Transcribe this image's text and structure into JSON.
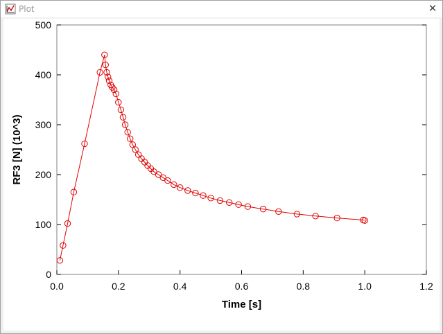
{
  "window": {
    "title": "Plot",
    "close_glyph": "✕",
    "icon": "plot-icon"
  },
  "colors": {
    "series": "#e00000",
    "axis": "#000000",
    "frame": "#808080"
  },
  "chart_data": {
    "type": "line",
    "title": "",
    "xlabel": "Time [s]",
    "ylabel": "RF3 [N]  (10^3)",
    "xlim": [
      0,
      1.2
    ],
    "ylim": [
      0,
      500
    ],
    "xticks": [
      "0.0",
      "0.2",
      "0.4",
      "0.6",
      "0.8",
      "1.0",
      "1.2"
    ],
    "yticks": [
      "0",
      "100",
      "200",
      "300",
      "400",
      "500"
    ],
    "grid": false,
    "legend": "none",
    "series": [
      {
        "marker": "circle",
        "x": [
          0.01,
          0.02,
          0.035,
          0.055,
          0.09,
          0.14,
          0.155,
          0.158,
          0.162,
          0.166,
          0.17,
          0.175,
          0.18,
          0.186,
          0.192,
          0.2,
          0.208,
          0.215,
          0.222,
          0.23,
          0.238,
          0.246,
          0.255,
          0.265,
          0.275,
          0.285,
          0.295,
          0.305,
          0.315,
          0.33,
          0.345,
          0.36,
          0.38,
          0.4,
          0.425,
          0.45,
          0.475,
          0.5,
          0.53,
          0.56,
          0.59,
          0.62,
          0.67,
          0.72,
          0.78,
          0.84,
          0.91,
          0.995,
          1.0
        ],
        "y": [
          28,
          58,
          102,
          165,
          262,
          405,
          440,
          420,
          405,
          396,
          388,
          380,
          375,
          370,
          362,
          345,
          330,
          315,
          300,
          285,
          272,
          260,
          250,
          240,
          232,
          225,
          218,
          212,
          206,
          200,
          194,
          188,
          180,
          174,
          168,
          163,
          158,
          153,
          148,
          144,
          140,
          136,
          131,
          126,
          121,
          117,
          113,
          109,
          108
        ]
      }
    ]
  }
}
